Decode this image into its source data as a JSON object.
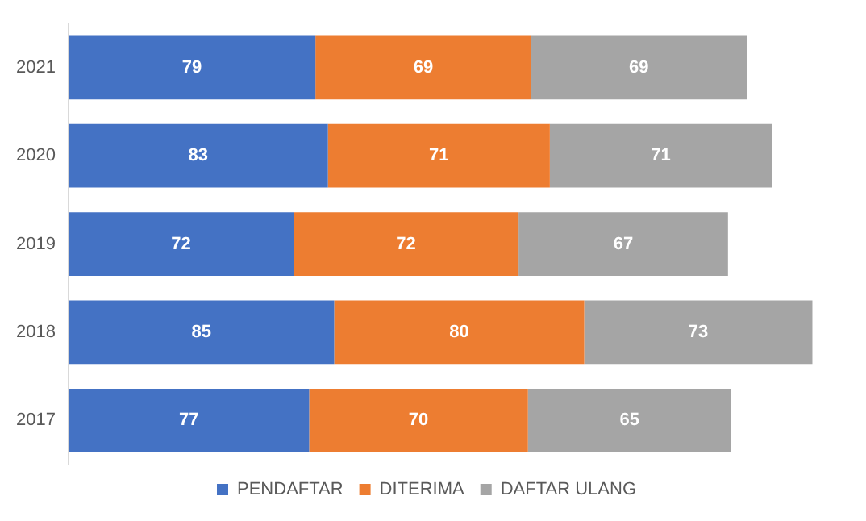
{
  "chart_data": {
    "type": "bar",
    "orientation": "horizontal",
    "stacked": true,
    "data_labels": true,
    "legend": "bottom",
    "categories": [
      "2021",
      "2020",
      "2019",
      "2018",
      "2017"
    ],
    "series": [
      {
        "name": "PENDAFTAR",
        "color": "#4472c4",
        "values": [
          79,
          83,
          72,
          85,
          77
        ]
      },
      {
        "name": "DITERIMA",
        "color": "#ed7d31",
        "values": [
          69,
          71,
          72,
          80,
          70
        ]
      },
      {
        "name": "DAFTAR ULANG",
        "color": "#a5a5a5",
        "values": [
          69,
          71,
          67,
          73,
          65
        ]
      }
    ]
  }
}
